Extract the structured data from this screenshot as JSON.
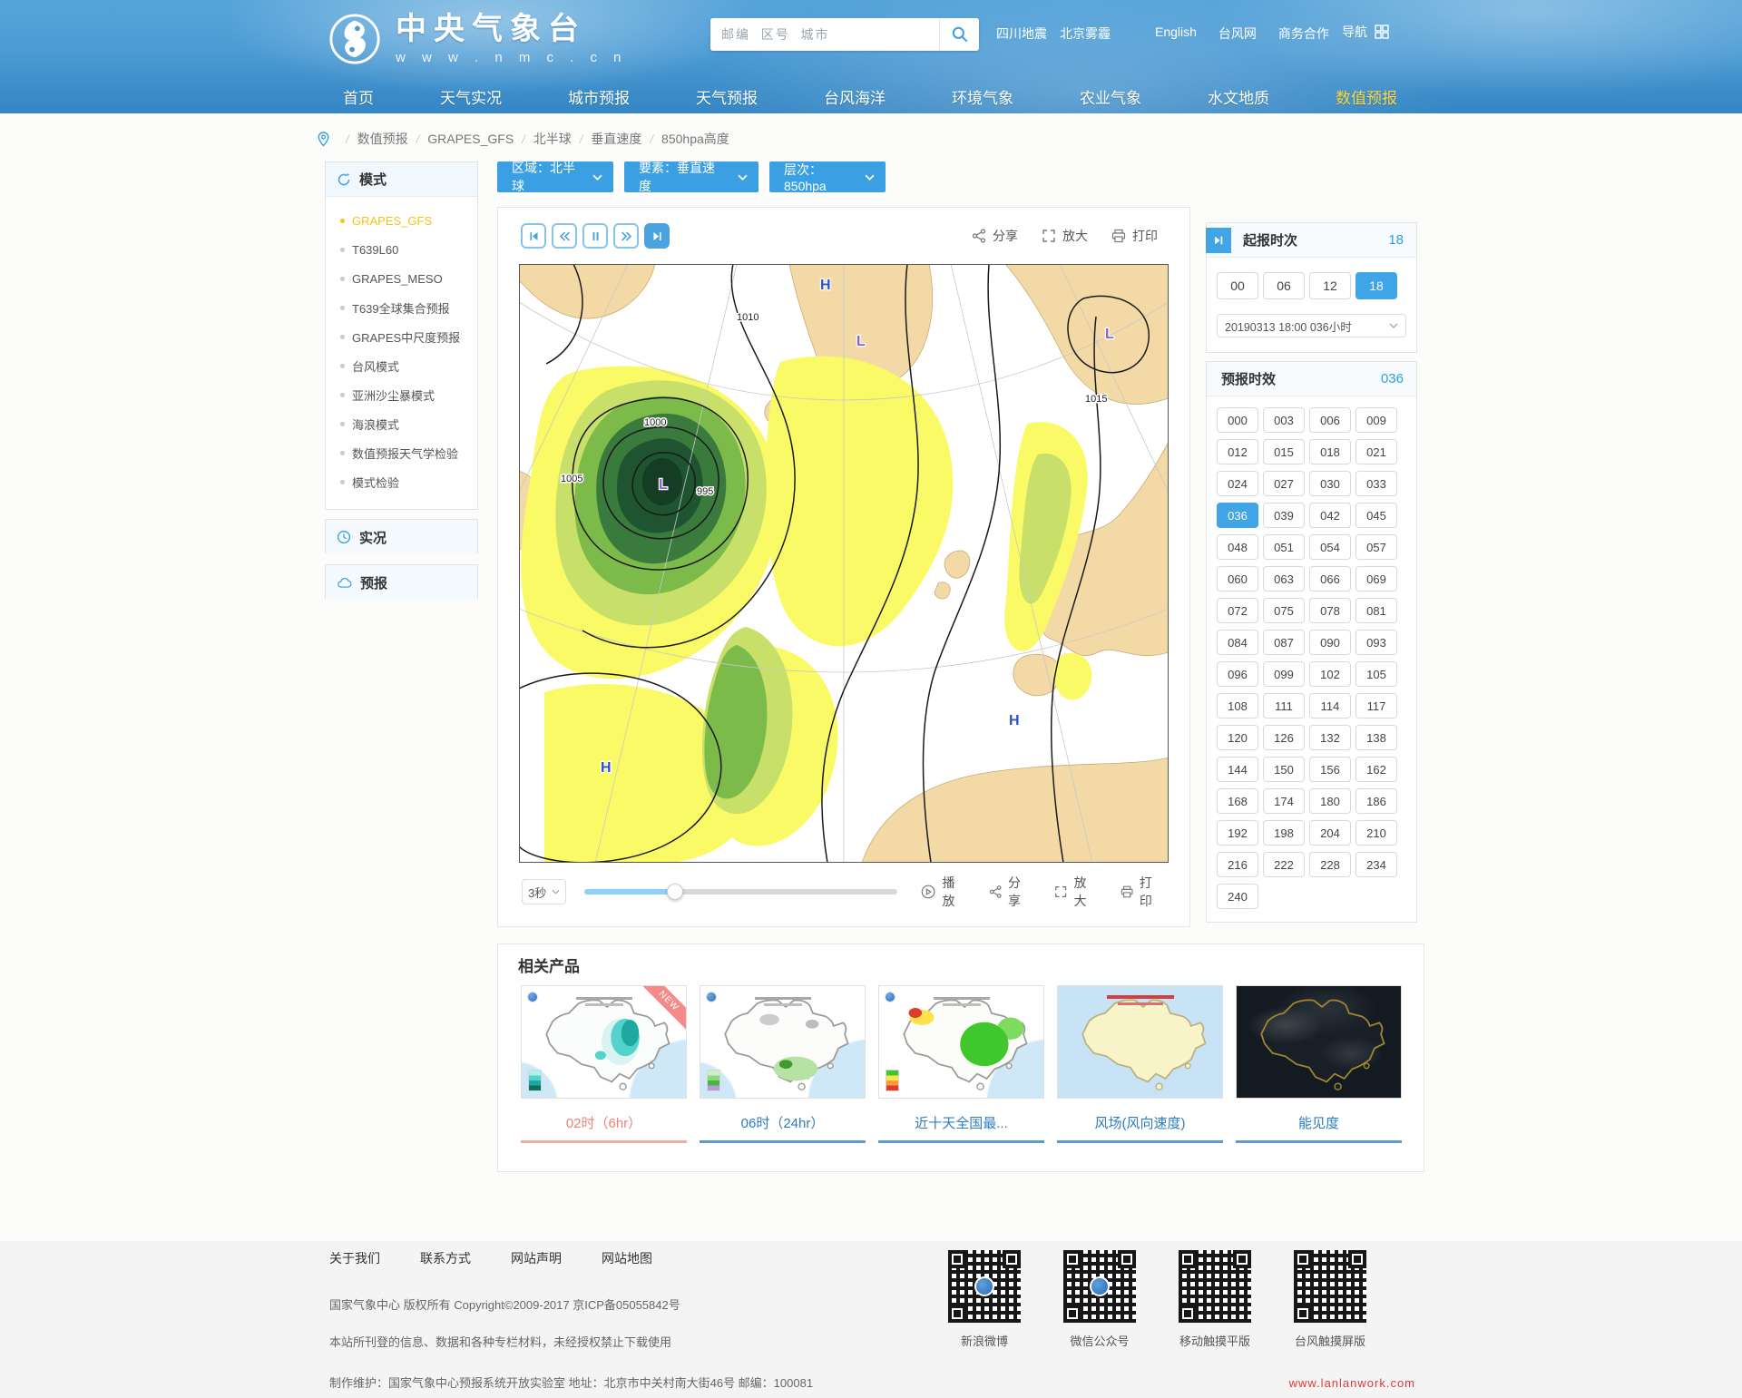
{
  "site": {
    "logo_title": "中央气象台",
    "logo_url": "w w w . n m c . c n"
  },
  "header": {
    "search_placeholder": "邮编  区号  城市",
    "hot_links": [
      "四川地震",
      "北京雾霾"
    ],
    "utility_links": [
      "English",
      "台风网",
      "商务合作"
    ],
    "nav_toggle": "导航"
  },
  "nav": {
    "active": "数值预报",
    "items": [
      "首页",
      "天气实况",
      "城市预报",
      "天气预报",
      "台风海洋",
      "环境气象",
      "农业气象",
      "水文地质",
      "数值预报"
    ]
  },
  "breadcrumb": [
    "数值预报",
    "GRAPES_GFS",
    "北半球",
    "垂直速度",
    "850hpa高度"
  ],
  "filters": {
    "region": "区域：北半球",
    "element": "要素：垂直速度",
    "level": "层次：850hpa"
  },
  "sidebar": {
    "models_title": "模式",
    "active": "GRAPES_GFS",
    "models": [
      "GRAPES_GFS",
      "T639L60",
      "GRAPES_MESO",
      "T639全球集合预报",
      "GRAPES中尺度预报",
      "台风模式",
      "亚洲沙尘暴模式",
      "海浪模式",
      "数值预报天气学检验",
      "模式检验"
    ],
    "live_label": "实况",
    "forecast_label": "预报"
  },
  "viewer": {
    "share": "分享",
    "zoom": "放大",
    "print": "打印",
    "play": "播放",
    "interval": "3秒",
    "progress_percent": 29
  },
  "init_panel": {
    "title": "起报时次",
    "selected": "18",
    "options": [
      "00",
      "06",
      "12",
      "18"
    ],
    "run_label": "20190313 18:00  036小时"
  },
  "forecast_panel": {
    "title": "预报时效",
    "selected": "036",
    "hours": [
      "000",
      "003",
      "006",
      "009",
      "012",
      "015",
      "018",
      "021",
      "024",
      "027",
      "030",
      "033",
      "036",
      "039",
      "042",
      "045",
      "048",
      "051",
      "054",
      "057",
      "060",
      "063",
      "066",
      "069",
      "072",
      "075",
      "078",
      "081",
      "084",
      "087",
      "090",
      "093",
      "096",
      "099",
      "102",
      "105",
      "108",
      "111",
      "114",
      "117",
      "120",
      "126",
      "132",
      "138",
      "144",
      "150",
      "156",
      "162",
      "168",
      "174",
      "180",
      "186",
      "192",
      "198",
      "204",
      "210",
      "216",
      "222",
      "228",
      "234",
      "240"
    ]
  },
  "related": {
    "title": "相关产品",
    "items": [
      {
        "caption": "02时（6hr）",
        "variant": "p1",
        "badge": "NEW",
        "active": true
      },
      {
        "caption": "06时（24hr）",
        "variant": "p2"
      },
      {
        "caption": "近十天全国最...",
        "variant": "p3"
      },
      {
        "caption": "风场(风向速度)",
        "variant": "p4"
      },
      {
        "caption": "能见度",
        "variant": "p5"
      }
    ]
  },
  "footer": {
    "links": [
      "关于我们",
      "联系方式",
      "网站声明",
      "网站地图"
    ],
    "copyright": "国家气象中心 版权所有 Copyright©2009-2017 京ICP备05055842号",
    "notice": "本站所刊登的信息、数据和各种专栏材料，未经授权禁止下载使用",
    "maintenance": "制作维护：国家气象中心预报系统开放实验室 地址：北京市中关村南大街46号 邮编：100081",
    "qr_items": [
      {
        "label": "新浪微博",
        "variant": "logo"
      },
      {
        "label": "微信公众号",
        "variant": "logo"
      },
      {
        "label": "移动触摸平版",
        "variant": "plain"
      },
      {
        "label": "台风触摸屏版",
        "variant": "plain"
      }
    ],
    "credit": "www.lanlanwork.com"
  },
  "weather_map": {
    "high_symbol": "H",
    "low_symbol": "L",
    "contour_labels": [
      "1010",
      "1005",
      "1000",
      "995",
      "1015"
    ]
  }
}
